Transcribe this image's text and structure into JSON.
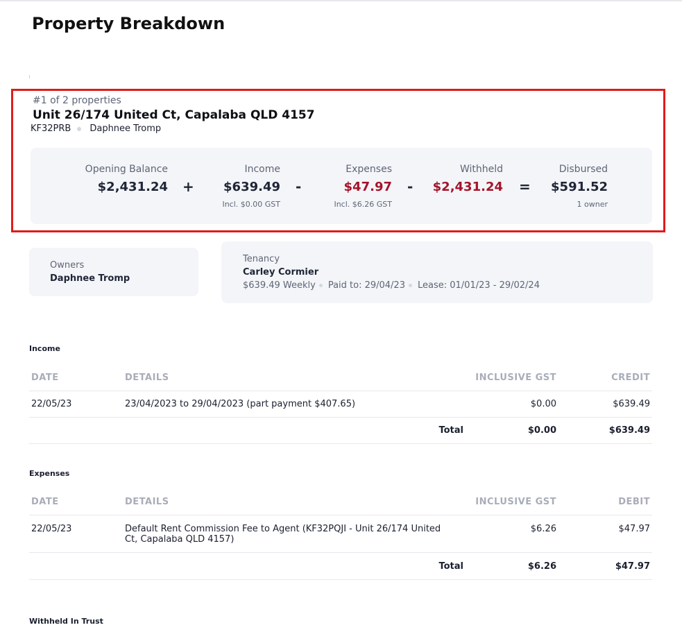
{
  "page": {
    "title": "Property Breakdown"
  },
  "property": {
    "count_label": "#1 of 2 properties",
    "address": "Unit 26/174 United Ct, Capalaba QLD 4157",
    "code": "KF32PRB",
    "owner_name": "Daphnee Tromp"
  },
  "summary": {
    "opening": {
      "label": "Opening Balance",
      "value": "$2,431.24"
    },
    "income": {
      "label": "Income",
      "value": "$639.49",
      "sub": "Incl. $0.00 GST"
    },
    "expenses": {
      "label": "Expenses",
      "value": "$47.97",
      "sub": "Incl. $6.26 GST"
    },
    "withheld": {
      "label": "Withheld",
      "value": "$2,431.24"
    },
    "disbursed": {
      "label": "Disbursed",
      "value": "$591.52",
      "sub": "1 owner"
    },
    "ops": {
      "plus": "+",
      "minus1": "-",
      "minus2": "-",
      "equals": "="
    },
    "colors": {
      "negative": "#a3142a"
    }
  },
  "owners_card": {
    "label": "Owners",
    "name": "Daphnee Tromp"
  },
  "tenancy_card": {
    "label": "Tenancy",
    "name": "Carley Cormier",
    "rent": "$639.49 Weekly",
    "paid_to": "Paid to: 29/04/23",
    "lease": "Lease: 01/01/23 - 29/02/24"
  },
  "income_table": {
    "title": "Income",
    "headers": {
      "date": "DATE",
      "details": "DETAILS",
      "gst": "INCLUSIVE GST",
      "amount": "CREDIT"
    },
    "rows": [
      {
        "date": "22/05/23",
        "details": "23/04/2023 to 29/04/2023 (part payment $407.65)",
        "gst": "$0.00",
        "amount": "$639.49"
      }
    ],
    "total": {
      "label": "Total",
      "gst": "$0.00",
      "amount": "$639.49"
    }
  },
  "expenses_table": {
    "title": "Expenses",
    "headers": {
      "date": "DATE",
      "details": "DETAILS",
      "gst": "INCLUSIVE GST",
      "amount": "DEBIT"
    },
    "rows": [
      {
        "date": "22/05/23",
        "details_line1": "Default Rent Commission Fee to Agent (KF32PQJI - Unit 26/174 United",
        "details_line2": "Ct, Capalaba QLD 4157)",
        "gst": "$6.26",
        "amount": "$47.97"
      }
    ],
    "total": {
      "label": "Total",
      "gst": "$6.26",
      "amount": "$47.97"
    }
  },
  "withheld_section": {
    "title": "Withheld In Trust"
  }
}
